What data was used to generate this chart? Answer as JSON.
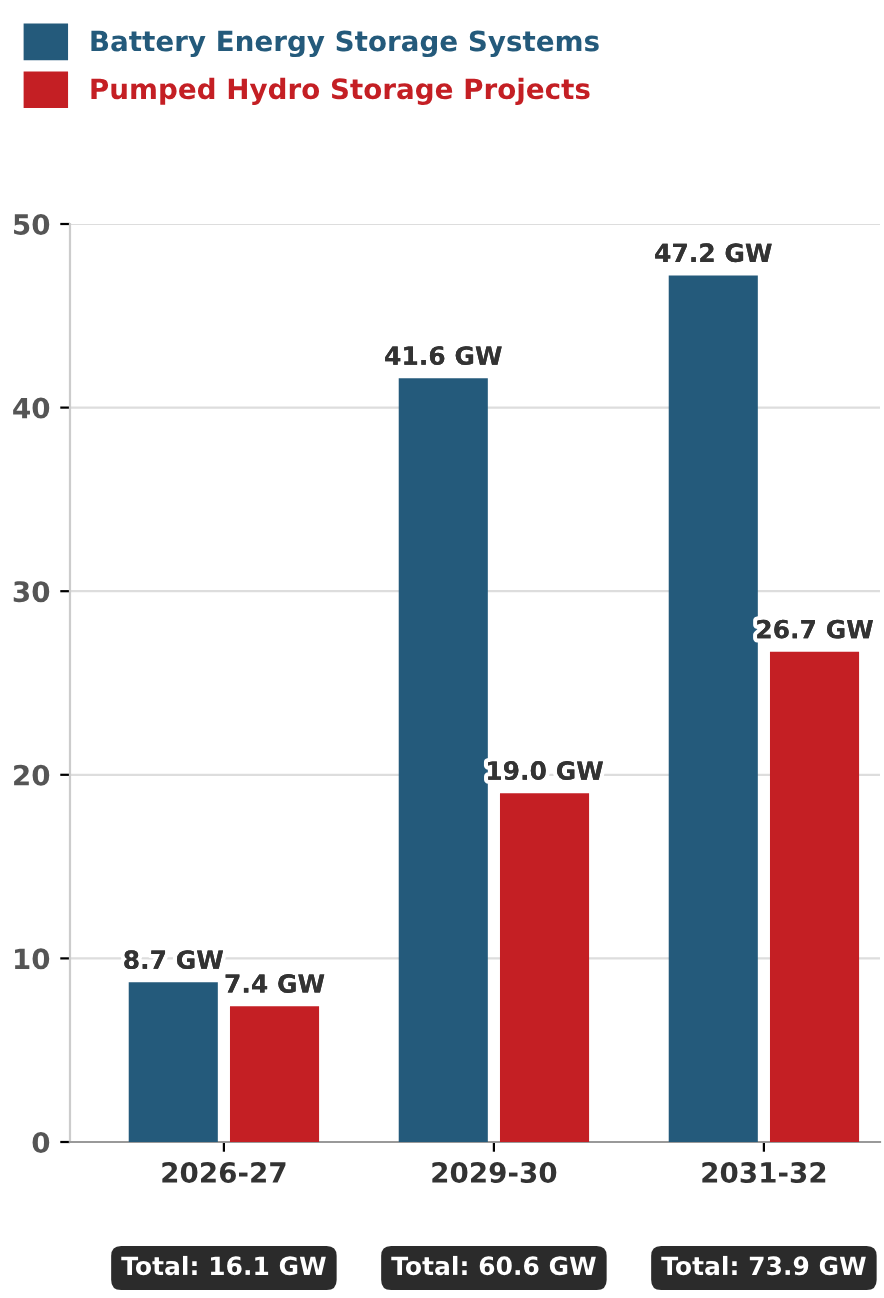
{
  "chart_data": {
    "type": "bar",
    "categories": [
      "2026-27",
      "2029-30",
      "2031-32"
    ],
    "series": [
      {
        "name": "Battery Energy Storage Systems",
        "color": "#245a7b",
        "values": [
          8.7,
          41.6,
          47.2
        ],
        "value_labels": [
          "8.7 GW",
          "41.6 GW",
          "47.2 GW"
        ]
      },
      {
        "name": "Pumped Hydro Storage Projects",
        "color": "#c41f24",
        "values": [
          7.4,
          19.0,
          26.7
        ],
        "value_labels": [
          "7.4 GW",
          "19.0 GW",
          "26.7 GW"
        ]
      }
    ],
    "ylim": [
      0,
      50
    ],
    "yticks": [
      0,
      10,
      20,
      30,
      40,
      50
    ],
    "grid": "y",
    "legend": "top left",
    "annotations": [
      "Total: 16.1 GW",
      "Total: 60.6 GW",
      "Total: 73.9 GW"
    ]
  }
}
